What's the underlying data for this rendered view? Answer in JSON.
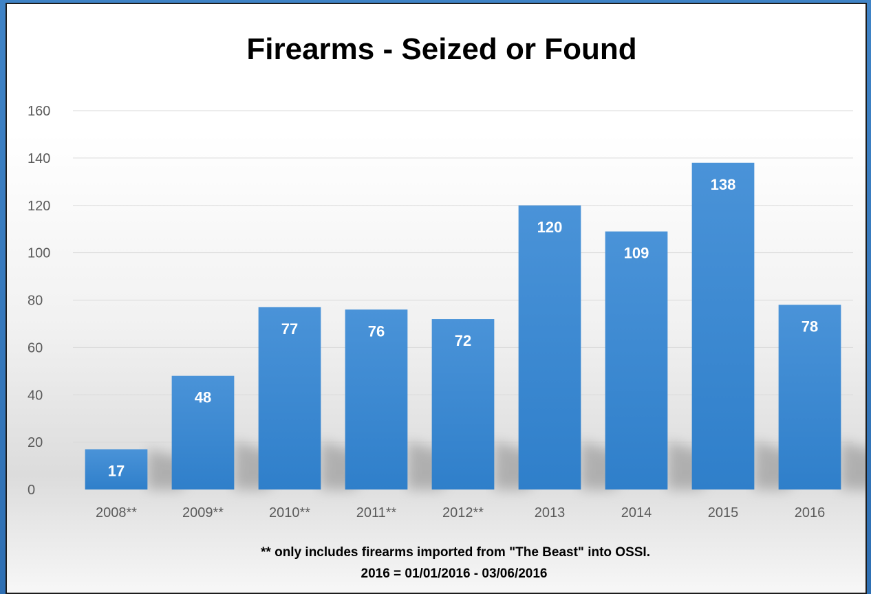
{
  "colors": {
    "bar": "#3b87cf",
    "bar_light": "#5299db",
    "grid": "#d9d9d9",
    "text": "#5a5a5a"
  },
  "chart_data": {
    "type": "bar",
    "title": "Firearms - Seized or Found",
    "categories": [
      "2008**",
      "2009**",
      "2010**",
      "2011**",
      "2012**",
      "2013",
      "2014",
      "2015",
      "2016"
    ],
    "values": [
      17,
      48,
      77,
      76,
      72,
      120,
      109,
      138,
      78
    ],
    "ylim": [
      0,
      160
    ],
    "yticks": [
      0,
      20,
      40,
      60,
      80,
      100,
      120,
      140,
      160
    ],
    "grid": true,
    "data_labels": true,
    "xlabel": "",
    "ylabel": ""
  },
  "footnote": {
    "line1": "** only includes firearms imported from \"The Beast\" into OSSI.",
    "line2": "2016  = 01/01/2016 - 03/06/2016"
  }
}
